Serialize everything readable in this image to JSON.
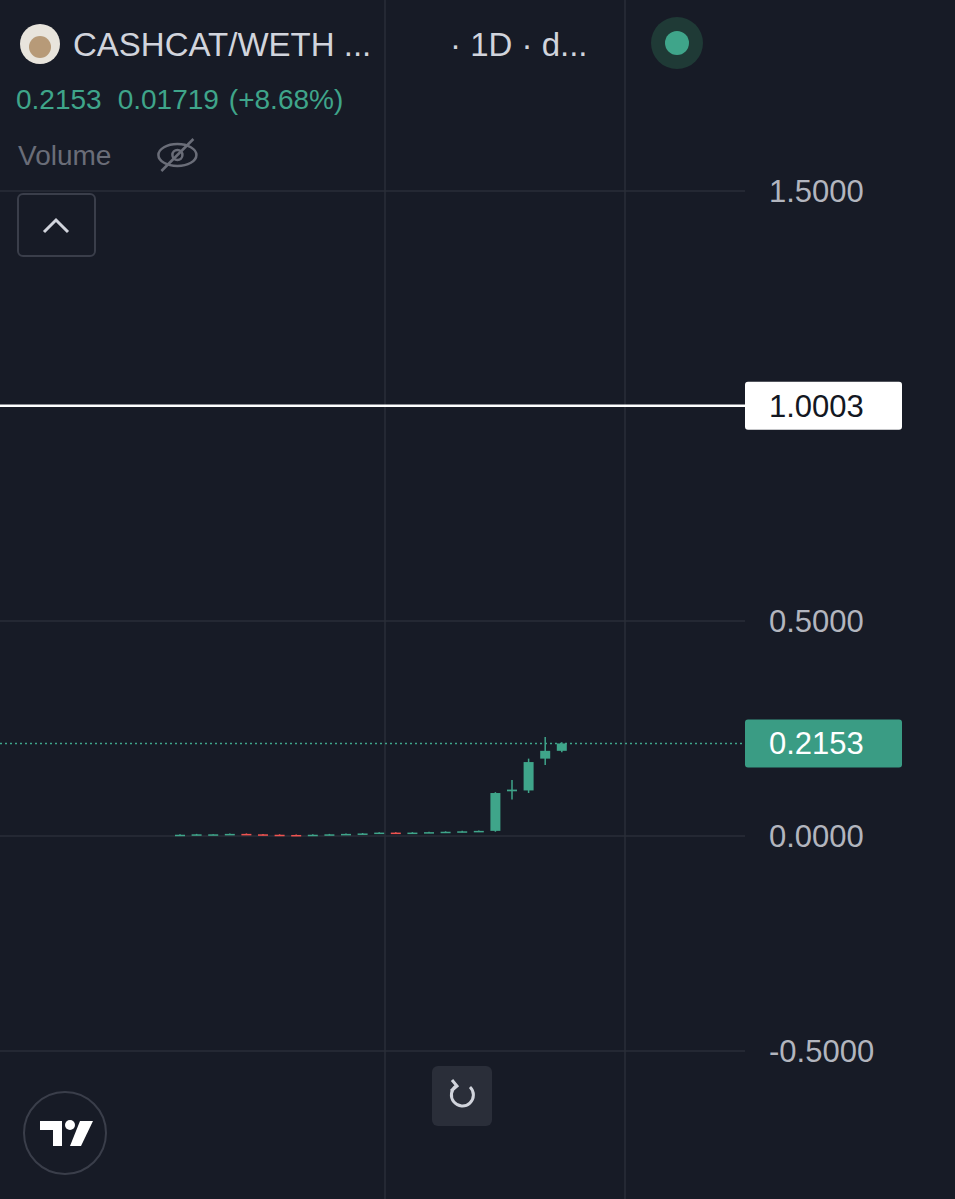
{
  "chart_data": {
    "type": "candlestick",
    "title": "CASHCAT/WETH ...",
    "subtitle": "· 1D · d...",
    "header": {
      "price": 0.2153,
      "change": 0.01719,
      "change_label": "(+8.68%)",
      "volume_label": "Volume"
    },
    "categories": [
      null,
      null,
      null,
      null,
      null,
      null,
      null,
      null,
      null,
      null,
      null,
      null,
      null,
      null,
      null,
      null,
      null,
      null,
      null,
      null,
      null,
      null,
      null,
      null
    ],
    "series": [
      {
        "name": "CASHCAT/WETH",
        "color": "#3fa58a",
        "down_color": "#ef5350",
        "open": [
          0.002,
          0.003,
          0.004,
          0.004,
          0.005,
          0.004,
          0.003,
          0.0025,
          0.002,
          0.003,
          0.004,
          0.005,
          0.006,
          0.008,
          0.007,
          0.008,
          0.009,
          0.01,
          0.011,
          0.012,
          0.104,
          0.106,
          0.18,
          0.1981
        ],
        "high": [
          0.004,
          0.005,
          0.005,
          0.006,
          0.006,
          0.005,
          0.004,
          0.0035,
          0.004,
          0.005,
          0.006,
          0.007,
          0.009,
          0.009,
          0.009,
          0.01,
          0.011,
          0.012,
          0.013,
          0.102,
          0.13,
          0.18,
          0.23,
          0.218
        ],
        "low": [
          0.001,
          0.002,
          0.003,
          0.003,
          0.003,
          0.002,
          0.0015,
          0.001,
          0.001,
          0.002,
          0.003,
          0.004,
          0.005,
          0.006,
          0.006,
          0.007,
          0.008,
          0.009,
          0.01,
          0.01,
          0.085,
          0.1,
          0.165,
          0.195
        ],
        "close": [
          0.003,
          0.004,
          0.004,
          0.005,
          0.004,
          0.003,
          0.0025,
          0.002,
          0.003,
          0.004,
          0.005,
          0.006,
          0.008,
          0.007,
          0.008,
          0.009,
          0.01,
          0.011,
          0.012,
          0.1,
          0.108,
          0.172,
          0.1981,
          0.2153
        ]
      }
    ],
    "horizontal_line": 1.0003,
    "last_price": 0.2153,
    "ylim": [
      -0.844,
      1.944
    ],
    "yticks": [
      {
        "value": -0.5,
        "label": "-0.5000"
      },
      {
        "value": 0,
        "label": "0.0000"
      },
      {
        "value": 0.5,
        "label": "0.5000"
      },
      {
        "value": 1.5,
        "label": "1.5000"
      }
    ],
    "grid": true,
    "tick_labels": "y"
  }
}
